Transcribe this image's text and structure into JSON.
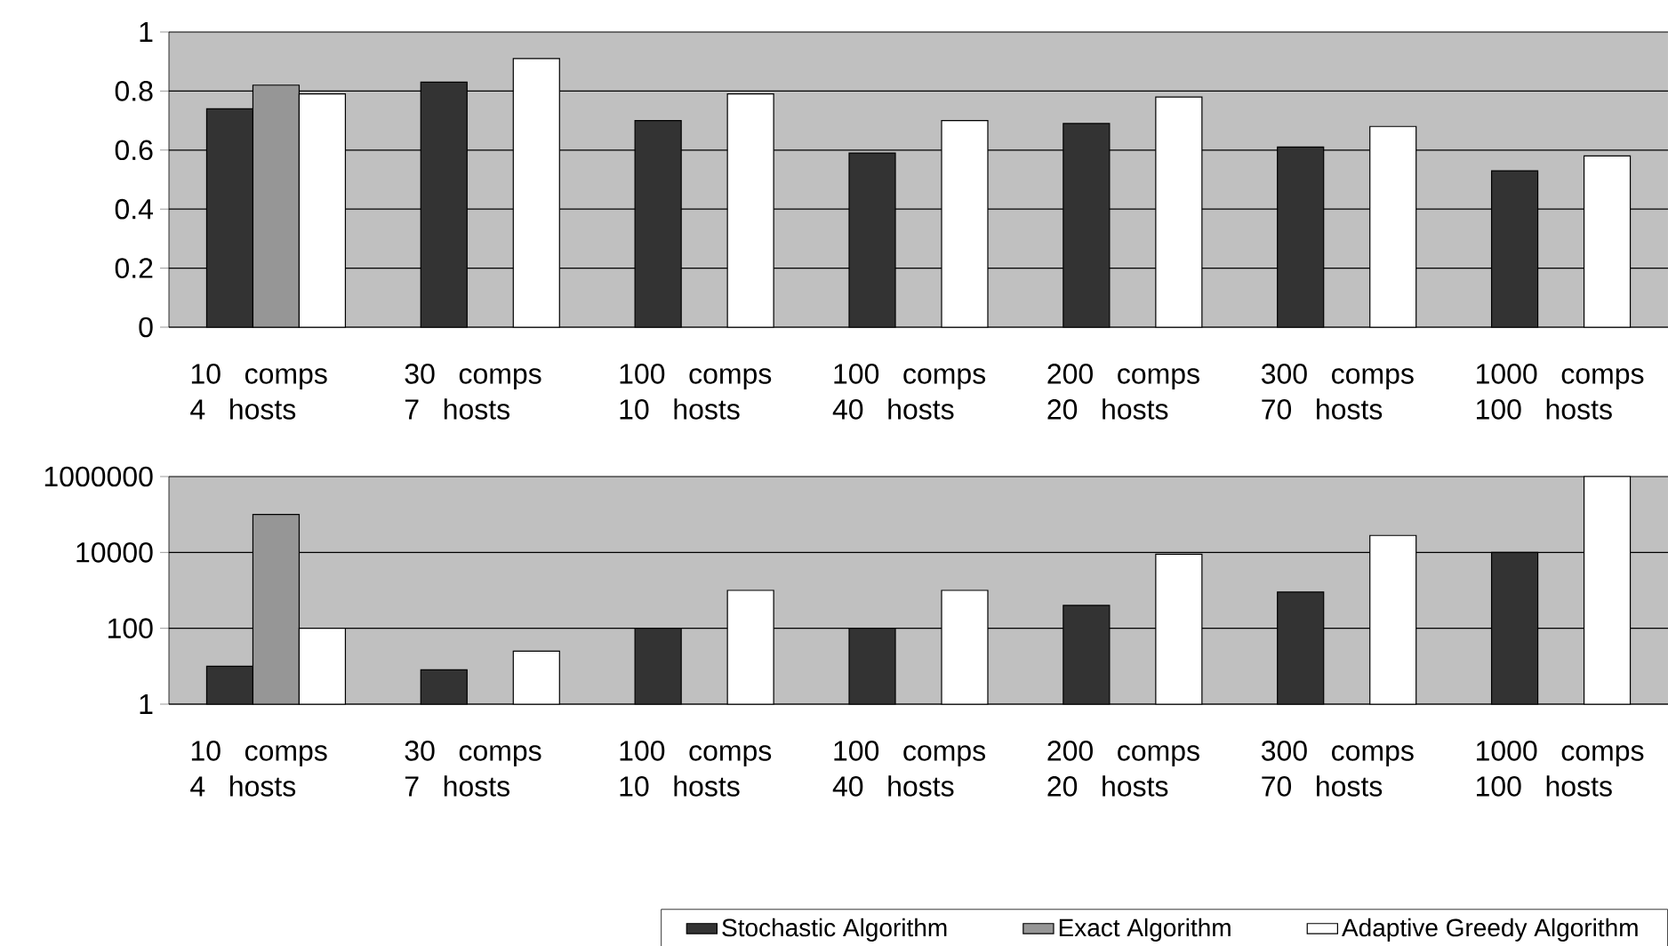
{
  "chart_data": [
    {
      "type": "bar",
      "categories": [
        "10 comps 4 hosts",
        "30 comps 7 hosts",
        "100 comps 10 hosts",
        "100 comps 40 hosts",
        "200 comps 20 hosts",
        "300 comps 70 hosts",
        "1000 comps 100 hosts"
      ],
      "series": [
        {
          "color": "#333333",
          "values": [
            0.74,
            0.83,
            0.7,
            0.59,
            0.69,
            0.61,
            0.53
          ]
        },
        {
          "color": "#969696",
          "values": [
            0.82,
            null,
            null,
            null,
            null,
            null,
            null
          ]
        },
        {
          "color": "#ffffff",
          "values": [
            0.79,
            0.91,
            0.79,
            0.7,
            0.78,
            0.68,
            0.58
          ]
        }
      ],
      "ylim": [
        0,
        1
      ],
      "yticks": [
        0,
        0.2,
        0.4,
        0.6,
        0.8,
        1
      ],
      "grid": "y"
    },
    {
      "type": "bar",
      "categories": [
        "10 comps 4 hosts",
        "30 comps 7 hosts",
        "100 comps 10 hosts",
        "100 comps 40 hosts",
        "200 comps 20 hosts",
        "300 comps 70 hosts",
        "1000 comps 100 hosts"
      ],
      "series": [
        {
          "name": "Stochastic Algorithm",
          "color": "#333333",
          "values": [
            10,
            8,
            100,
            100,
            400,
            900,
            10000
          ]
        },
        {
          "name": "Exact Algorithm",
          "color": "#969696",
          "values": [
            100000,
            null,
            null,
            null,
            null,
            null,
            null
          ]
        },
        {
          "name": "Adaptive Greedy Algorithm",
          "color": "#ffffff",
          "values": [
            100,
            25,
            1000,
            1000,
            9000,
            28000,
            1000000
          ]
        }
      ],
      "log": true,
      "ylim": [
        1,
        1000000
      ],
      "yticks": [
        1,
        100,
        10000,
        1000000
      ],
      "grid": "y",
      "legend": "bottom"
    }
  ]
}
